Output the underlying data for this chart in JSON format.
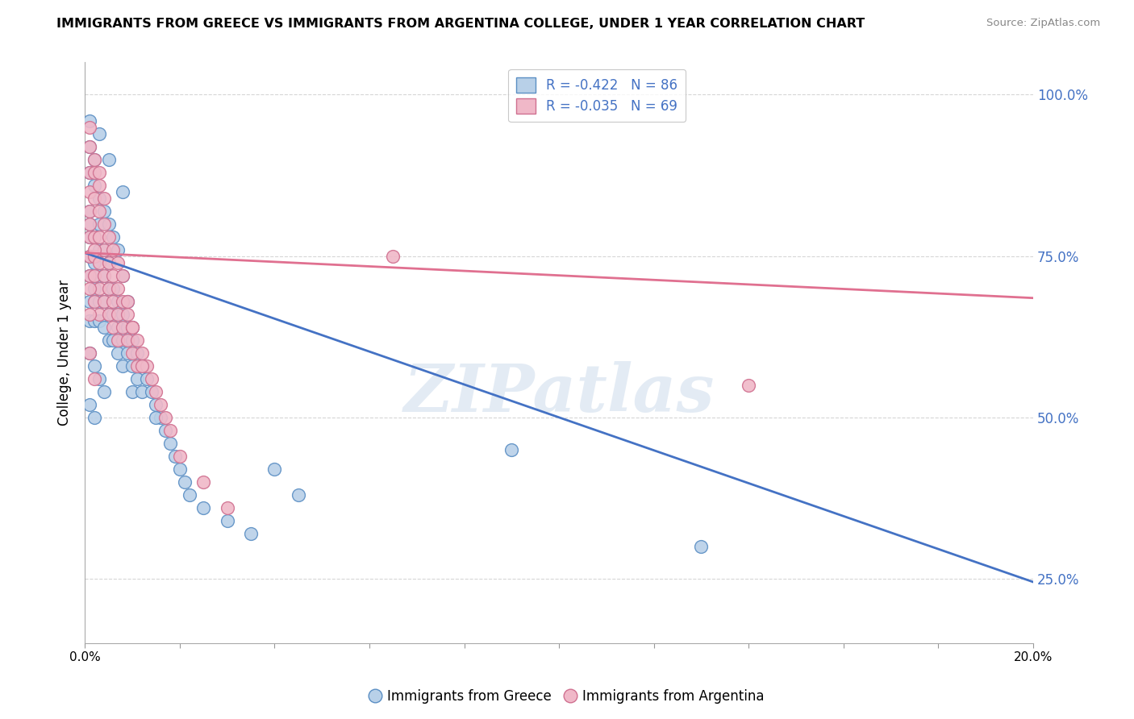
{
  "title": "IMMIGRANTS FROM GREECE VS IMMIGRANTS FROM ARGENTINA COLLEGE, UNDER 1 YEAR CORRELATION CHART",
  "source": "Source: ZipAtlas.com",
  "legend_blue_label": "Immigrants from Greece",
  "legend_pink_label": "Immigrants from Argentina",
  "legend_blue_r": -0.422,
  "legend_blue_n": 86,
  "legend_pink_r": -0.035,
  "legend_pink_n": 69,
  "ylabel": "College, Under 1 year",
  "blue_color": "#b8d0e8",
  "blue_edge": "#5b8fc4",
  "blue_line_color": "#4472c4",
  "pink_color": "#f0b8c8",
  "pink_edge": "#d07090",
  "pink_line_color": "#e07090",
  "watermark": "ZIPatlas",
  "xmin": 0.0,
  "xmax": 0.2,
  "ymin": 0.15,
  "ymax": 1.05,
  "blue_line_x0": 0.0,
  "blue_line_y0": 0.755,
  "blue_line_x1": 0.2,
  "blue_line_y1": 0.245,
  "pink_line_x0": 0.0,
  "pink_line_y0": 0.755,
  "pink_line_x1": 0.2,
  "pink_line_y1": 0.685,
  "greece_x": [
    0.001,
    0.001,
    0.001,
    0.001,
    0.001,
    0.001,
    0.001,
    0.002,
    0.002,
    0.002,
    0.002,
    0.002,
    0.002,
    0.002,
    0.003,
    0.003,
    0.003,
    0.003,
    0.003,
    0.004,
    0.004,
    0.004,
    0.004,
    0.005,
    0.005,
    0.005,
    0.005,
    0.006,
    0.006,
    0.006,
    0.007,
    0.007,
    0.007,
    0.008,
    0.008,
    0.008,
    0.009,
    0.009,
    0.01,
    0.01,
    0.01,
    0.011,
    0.011,
    0.012,
    0.012,
    0.013,
    0.014,
    0.015,
    0.016,
    0.017,
    0.018,
    0.019,
    0.02,
    0.021,
    0.022,
    0.025,
    0.03,
    0.035,
    0.04,
    0.045,
    0.001,
    0.001,
    0.002,
    0.002,
    0.003,
    0.004,
    0.005,
    0.006,
    0.007,
    0.008,
    0.009,
    0.01,
    0.012,
    0.015,
    0.001,
    0.002,
    0.003,
    0.004,
    0.001,
    0.002,
    0.09,
    0.13,
    0.001,
    0.003,
    0.005,
    0.008
  ],
  "greece_y": [
    0.78,
    0.82,
    0.75,
    0.72,
    0.68,
    0.65,
    0.8,
    0.78,
    0.75,
    0.72,
    0.68,
    0.65,
    0.7,
    0.74,
    0.8,
    0.76,
    0.72,
    0.68,
    0.65,
    0.76,
    0.72,
    0.68,
    0.64,
    0.74,
    0.7,
    0.66,
    0.62,
    0.7,
    0.66,
    0.62,
    0.68,
    0.64,
    0.6,
    0.66,
    0.62,
    0.58,
    0.64,
    0.6,
    0.62,
    0.58,
    0.54,
    0.6,
    0.56,
    0.58,
    0.54,
    0.56,
    0.54,
    0.52,
    0.5,
    0.48,
    0.46,
    0.44,
    0.42,
    0.4,
    0.38,
    0.36,
    0.34,
    0.32,
    0.42,
    0.38,
    0.88,
    0.92,
    0.86,
    0.9,
    0.84,
    0.82,
    0.8,
    0.78,
    0.76,
    0.72,
    0.68,
    0.64,
    0.58,
    0.5,
    0.6,
    0.58,
    0.56,
    0.54,
    0.52,
    0.5,
    0.45,
    0.3,
    0.96,
    0.94,
    0.9,
    0.85
  ],
  "argentina_x": [
    0.001,
    0.001,
    0.001,
    0.001,
    0.001,
    0.002,
    0.002,
    0.002,
    0.002,
    0.003,
    0.003,
    0.003,
    0.003,
    0.004,
    0.004,
    0.004,
    0.005,
    0.005,
    0.005,
    0.006,
    0.006,
    0.006,
    0.007,
    0.007,
    0.007,
    0.008,
    0.008,
    0.009,
    0.009,
    0.01,
    0.01,
    0.011,
    0.011,
    0.012,
    0.013,
    0.014,
    0.015,
    0.016,
    0.017,
    0.018,
    0.02,
    0.025,
    0.03,
    0.001,
    0.002,
    0.003,
    0.004,
    0.005,
    0.006,
    0.007,
    0.008,
    0.009,
    0.01,
    0.012,
    0.001,
    0.001,
    0.002,
    0.003,
    0.004,
    0.001,
    0.002,
    0.003,
    0.001,
    0.002,
    0.001,
    0.002,
    0.14,
    0.001,
    0.065
  ],
  "argentina_y": [
    0.78,
    0.75,
    0.72,
    0.82,
    0.85,
    0.78,
    0.75,
    0.72,
    0.68,
    0.78,
    0.74,
    0.7,
    0.66,
    0.76,
    0.72,
    0.68,
    0.74,
    0.7,
    0.66,
    0.72,
    0.68,
    0.64,
    0.7,
    0.66,
    0.62,
    0.68,
    0.64,
    0.66,
    0.62,
    0.64,
    0.6,
    0.62,
    0.58,
    0.6,
    0.58,
    0.56,
    0.54,
    0.52,
    0.5,
    0.48,
    0.44,
    0.4,
    0.36,
    0.88,
    0.84,
    0.82,
    0.8,
    0.78,
    0.76,
    0.74,
    0.72,
    0.68,
    0.64,
    0.58,
    0.92,
    0.7,
    0.88,
    0.86,
    0.84,
    0.95,
    0.9,
    0.88,
    0.8,
    0.76,
    0.6,
    0.56,
    0.55,
    0.66,
    0.75
  ]
}
